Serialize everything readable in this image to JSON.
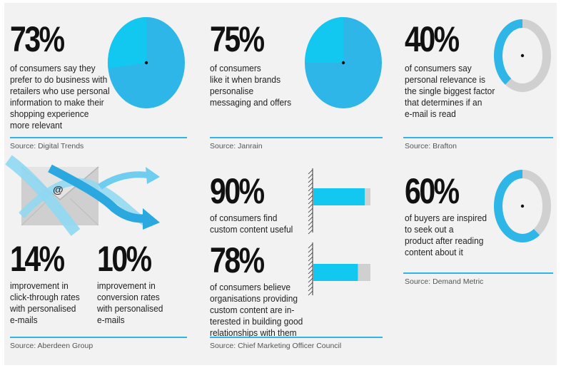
{
  "stats": [
    {
      "id": "s73",
      "value": "73%",
      "lines": [
        "of consumers say they",
        "prefer to do business with",
        "retailers who use personal",
        "information to make their",
        "shopping experience",
        "more relevant"
      ]
    },
    {
      "id": "s75",
      "value": "75%",
      "lines": [
        "of consumers",
        "like it when brands",
        "personalise",
        "messaging and offers"
      ]
    },
    {
      "id": "s40",
      "value": "40%",
      "lines": [
        "of consumers say",
        "personal relevance is",
        "the single biggest factor",
        "that determines if an",
        "e-mail is read"
      ]
    },
    {
      "id": "s14",
      "value": "14%",
      "lines": [
        "improvement in",
        "click-through rates",
        "with personalised",
        "e-mails"
      ]
    },
    {
      "id": "s10",
      "value": "10%",
      "lines": [
        "improvement in",
        "conversion rates",
        "with personalised",
        "e-mails"
      ]
    },
    {
      "id": "s90",
      "value": "90%",
      "lines": [
        "of consumers find",
        "custom content useful"
      ]
    },
    {
      "id": "s78",
      "value": "78%",
      "lines": [
        "of consumers believe",
        "organisations providing",
        "custom content are in-",
        "terested in building  good",
        "relationships with them"
      ]
    },
    {
      "id": "s60",
      "value": "60%",
      "lines": [
        "of buyers are inspired",
        "to seek out a",
        "product after reading",
        "content about it"
      ]
    }
  ],
  "sources": {
    "digital_trends": "Source: Digital Trends",
    "janrain": "Source: Janrain",
    "brafton": "Source:  Brafton",
    "aberdeen": "Source: Aberdeen Group",
    "cmo": "Source: Chief Marketing Officer Council",
    "demand_metric": "Source: Demand Metric"
  },
  "email_symbol": "@",
  "colors": {
    "accent": "#2fb6e8",
    "light": "#12c8f0",
    "grey": "#d0d0d0",
    "background": "#f2f2f2"
  },
  "chart_data": [
    {
      "type": "pie",
      "values": [
        73,
        27
      ],
      "labels": [
        "73%",
        ""
      ]
    },
    {
      "type": "pie",
      "values": [
        75,
        25
      ],
      "labels": [
        "75%",
        ""
      ]
    },
    {
      "type": "pie",
      "values": [
        40,
        60
      ],
      "labels": [
        "40%",
        ""
      ],
      "style": "donut"
    },
    {
      "type": "bar",
      "orientation": "horizontal",
      "categories": [
        "90%"
      ],
      "values": [
        90
      ],
      "xlim": [
        0,
        100
      ]
    },
    {
      "type": "bar",
      "orientation": "horizontal",
      "categories": [
        "78%"
      ],
      "values": [
        78
      ],
      "xlim": [
        0,
        100
      ]
    },
    {
      "type": "pie",
      "values": [
        60,
        40
      ],
      "labels": [
        "60%",
        ""
      ],
      "style": "donut"
    }
  ]
}
